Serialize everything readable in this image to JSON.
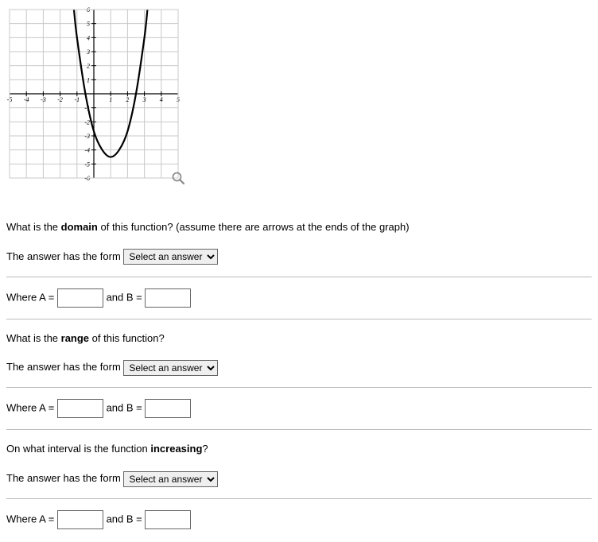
{
  "graph": {
    "type": "line",
    "xlim": [
      -5,
      5
    ],
    "ylim": [
      -6,
      6
    ],
    "xtick_step": 1,
    "ytick_step": 1,
    "x_axis_labels": [
      "-5",
      "-4",
      "-3",
      "-2",
      "-1",
      "",
      "1",
      "2",
      "3",
      "4",
      "5"
    ],
    "y_axis_labels": [
      "-6",
      "-5",
      "-4",
      "-3",
      "-2",
      "-1",
      "",
      "1",
      "2",
      "3",
      "4",
      "5",
      "6"
    ],
    "grid_color": "#c9c9c9",
    "axis_color": "#000000",
    "curve_color": "#000000",
    "curve_width": 2.2,
    "background_color": "#ffffff",
    "label_fontsize": 8,
    "curve_points": [
      [
        -1.18,
        6.0
      ],
      [
        -1.0,
        4.0
      ],
      [
        -0.5,
        0.0
      ],
      [
        0.0,
        -2.67
      ],
      [
        0.5,
        -4.0
      ],
      [
        1.0,
        -4.5
      ],
      [
        1.5,
        -4.0
      ],
      [
        2.0,
        -2.67
      ],
      [
        2.5,
        0.0
      ],
      [
        3.0,
        4.0
      ],
      [
        3.18,
        6.0
      ]
    ],
    "zoom_icon_color": "#8a8a8a"
  },
  "q1": {
    "prompt_pre": "What is the ",
    "prompt_bold": "domain",
    "prompt_post": " of this function? (assume there are arrows at the ends of the graph)",
    "form_label": "The answer has the form ",
    "select_placeholder": "Select an answer",
    "where_a_label": "Where A = ",
    "and_b_label": " and B = "
  },
  "q2": {
    "prompt_pre": "What is the ",
    "prompt_bold": "range",
    "prompt_post": " of this function?",
    "form_label": "The answer has the form ",
    "select_placeholder": "Select an answer",
    "where_a_label": "Where A = ",
    "and_b_label": " and B = "
  },
  "q3": {
    "prompt_pre": "On what interval is the function ",
    "prompt_bold": "increasing",
    "prompt_post": "?",
    "form_label": "The answer has the form ",
    "select_placeholder": "Select an answer",
    "where_a_label": "Where A = ",
    "and_b_label": " and B = "
  }
}
